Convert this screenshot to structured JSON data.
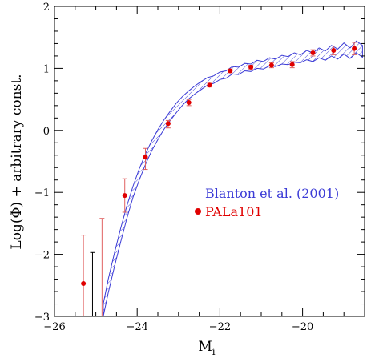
{
  "chart_data": {
    "type": "scatter",
    "xlabel": "M",
    "xlabel_subscript": "i",
    "ylabel": "Log(Φ) + arbitrary const.",
    "xlim": [
      -26,
      -18.5
    ],
    "ylim": [
      -3,
      2
    ],
    "x_ticks": [
      -26,
      -24,
      -22,
      -20
    ],
    "y_ticks": [
      -3,
      -2,
      -1,
      0,
      1,
      2
    ],
    "x_tick_labels": [
      "−26",
      "−24",
      "−22",
      "−20"
    ],
    "y_tick_labels": [
      "−3",
      "−2",
      "−1",
      "0",
      "1",
      "2"
    ],
    "colors": {
      "band": "#3b3bd6",
      "points": "#e00000",
      "errorbars": "#e06060",
      "axes": "#000000"
    },
    "series": [
      {
        "name": "Blanton et al. (2001)",
        "kind": "hatched-band",
        "x": [
          -24.82,
          -24.7,
          -24.55,
          -24.4,
          -24.25,
          -24.1,
          -23.95,
          -23.8,
          -23.65,
          -23.5,
          -23.35,
          -23.2,
          -23.05,
          -22.9,
          -22.75,
          -22.6,
          -22.45,
          -22.3,
          -22.15,
          -22.0,
          -21.85,
          -21.7,
          -21.55,
          -21.4,
          -21.25,
          -21.1,
          -20.95,
          -20.8,
          -20.65,
          -20.5,
          -20.35,
          -20.2,
          -20.05,
          -19.9,
          -19.75,
          -19.6,
          -19.45,
          -19.3,
          -19.15,
          -19.0,
          -18.85,
          -18.7,
          -18.55
        ],
        "lower": [
          -3.0,
          -2.62,
          -2.2,
          -1.8,
          -1.42,
          -1.08,
          -0.8,
          -0.55,
          -0.33,
          -0.15,
          0.02,
          0.16,
          0.29,
          0.41,
          0.51,
          0.59,
          0.66,
          0.73,
          0.76,
          0.82,
          0.84,
          0.91,
          0.9,
          0.96,
          0.95,
          1.0,
          0.99,
          1.04,
          1.03,
          1.07,
          1.06,
          1.1,
          1.09,
          1.14,
          1.11,
          1.17,
          1.13,
          1.2,
          1.15,
          1.23,
          1.16,
          1.25,
          1.18
        ],
        "upper": [
          -2.8,
          -2.4,
          -1.98,
          -1.58,
          -1.22,
          -0.9,
          -0.62,
          -0.38,
          -0.17,
          0.01,
          0.17,
          0.31,
          0.44,
          0.55,
          0.64,
          0.72,
          0.79,
          0.85,
          0.88,
          0.94,
          0.96,
          1.03,
          1.02,
          1.08,
          1.07,
          1.13,
          1.11,
          1.17,
          1.15,
          1.21,
          1.19,
          1.25,
          1.22,
          1.29,
          1.25,
          1.33,
          1.28,
          1.37,
          1.31,
          1.41,
          1.33,
          1.44,
          1.37
        ]
      },
      {
        "name": "PALa101",
        "kind": "points-with-errorbars",
        "x": [
          -25.3,
          -24.3,
          -23.8,
          -23.25,
          -22.75,
          -22.25,
          -21.75,
          -21.25,
          -20.75,
          -20.25,
          -19.75,
          -19.25,
          -18.75
        ],
        "y": [
          -2.47,
          -1.05,
          -0.43,
          0.11,
          0.45,
          0.73,
          0.96,
          1.02,
          1.05,
          1.06,
          1.25,
          1.29,
          1.32
        ],
        "yerr_low": [
          0.78,
          0.27,
          0.2,
          0.07,
          0.05,
          0.03,
          0.03,
          0.03,
          0.04,
          0.05,
          0.05,
          0.07,
          0.1
        ],
        "yerr_high": [
          0.78,
          0.27,
          0.14,
          0.05,
          0.05,
          0.03,
          0.03,
          0.03,
          0.04,
          0.05,
          0.05,
          0.07,
          0.1
        ],
        "extra_errorbars": [
          {
            "x": -24.85,
            "y_top": -1.42,
            "y_bottom": -3.0
          },
          {
            "x": -25.08,
            "y_top": -1.97,
            "y_bottom": -3.0,
            "color": "#000000"
          }
        ]
      }
    ],
    "legend": [
      {
        "text": "Blanton et al. (2001)",
        "color": "#3b3bd6",
        "marker": "none"
      },
      {
        "text": "PALa101",
        "color": "#e00000",
        "marker": "dot"
      }
    ]
  }
}
